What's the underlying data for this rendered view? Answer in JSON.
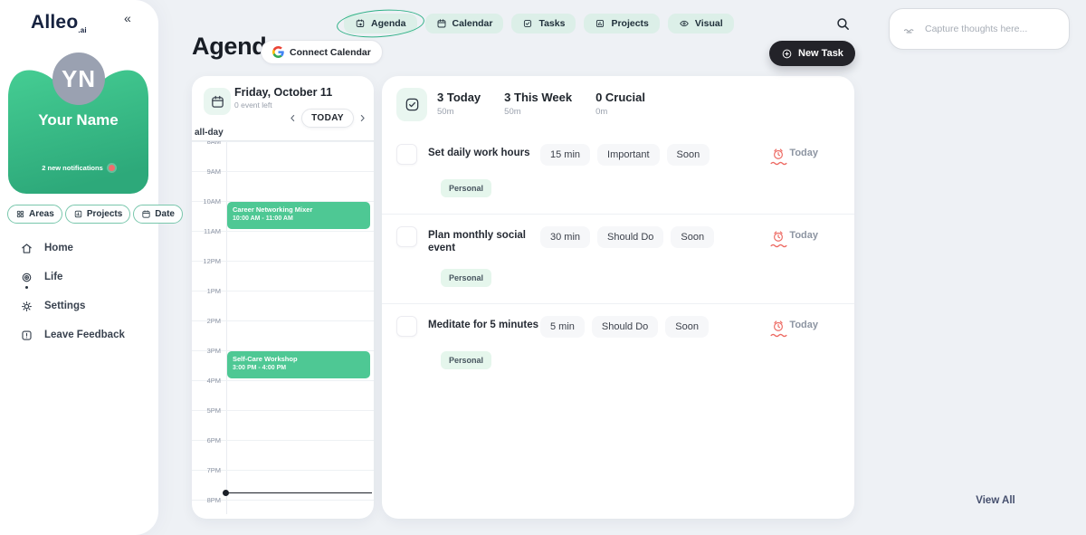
{
  "sidebar": {
    "logo_text": "Alleo",
    "logo_suffix": ".ai",
    "collapse_glyph": "«",
    "avatar_initials": "YN",
    "profile_name": "Your Name",
    "notifications_text": "2 new notifications",
    "filters": [
      {
        "label": "Areas",
        "icon": "areas"
      },
      {
        "label": "Projects",
        "icon": "projects"
      },
      {
        "label": "Date",
        "icon": "date"
      }
    ],
    "nav": [
      {
        "label": "Home",
        "icon": "home",
        "active": false
      },
      {
        "label": "Life",
        "icon": "life",
        "active": true
      },
      {
        "label": "Settings",
        "icon": "settings",
        "active": false
      },
      {
        "label": "Leave Feedback",
        "icon": "feedback",
        "active": false
      }
    ]
  },
  "topbar": {
    "tabs": [
      {
        "label": "Agenda",
        "icon": "agenda",
        "active": true
      },
      {
        "label": "Calendar",
        "icon": "calendar",
        "active": false
      },
      {
        "label": "Tasks",
        "icon": "tasks",
        "active": false
      },
      {
        "label": "Projects",
        "icon": "projects",
        "active": false
      },
      {
        "label": "Visual",
        "icon": "visual",
        "active": false
      }
    ],
    "capture_placeholder": "Capture thoughts here..."
  },
  "page": {
    "title": "Agenda",
    "connect_calendar_label": "Connect Calendar",
    "new_task_label": "New Task"
  },
  "calendar_panel": {
    "date_title": "Friday, October 11",
    "events_left": "0 event left",
    "today_label": "TODAY",
    "all_day_label": "all-day",
    "hours": [
      "8AM",
      "9AM",
      "10AM",
      "11AM",
      "12PM",
      "1PM",
      "2PM",
      "3PM",
      "4PM",
      "5PM",
      "6PM",
      "7PM",
      "8PM"
    ],
    "events": [
      {
        "title": "Career Networking Mixer",
        "time": "10:00 AM - 11:00 AM",
        "start_hour_index": 2,
        "duration_hours": 1
      },
      {
        "title": "Self-Care Workshop",
        "time": "3:00 PM - 4:00 PM",
        "start_hour_index": 7,
        "duration_hours": 1
      }
    ],
    "now_line_hours_after_8am": 11.77
  },
  "tasks_panel": {
    "stats": [
      {
        "label": "3 Today",
        "sub": "50m"
      },
      {
        "label": "3 This Week",
        "sub": "50m"
      },
      {
        "label": "0 Crucial",
        "sub": "0m"
      }
    ],
    "tasks": [
      {
        "title": "Set daily work hours",
        "duration": "15 min",
        "priority": "Important",
        "urgency": "Soon",
        "schedule": "Today",
        "tag": "Personal"
      },
      {
        "title": "Plan monthly social event",
        "duration": "30 min",
        "priority": "Should Do",
        "urgency": "Soon",
        "schedule": "Today",
        "tag": "Personal"
      },
      {
        "title": "Meditate for 5 minutes",
        "duration": "5 min",
        "priority": "Should Do",
        "urgency": "Soon",
        "schedule": "Today",
        "tag": "Personal"
      }
    ],
    "view_all_label": "View All"
  },
  "colors": {
    "accent_green": "#2fb187",
    "event_green": "#4ec894",
    "profile_gradient_top": "#45cd93",
    "profile_gradient_bottom": "#2da97a",
    "notification_red": "#f26d6d",
    "alarm_red": "#ed6a63",
    "new_task_button_bg": "#232329",
    "avatar_gray": "#9aa1b1",
    "mint_chip_bg": "#dcefe8"
  }
}
